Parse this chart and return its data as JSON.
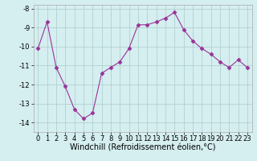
{
  "x": [
    0,
    1,
    2,
    3,
    4,
    5,
    6,
    7,
    8,
    9,
    10,
    11,
    12,
    13,
    14,
    15,
    16,
    17,
    18,
    19,
    20,
    21,
    22,
    23
  ],
  "y": [
    -10.1,
    -8.7,
    -11.1,
    -12.1,
    -13.3,
    -13.8,
    -13.5,
    -11.4,
    -11.1,
    -10.8,
    -10.1,
    -8.85,
    -8.85,
    -8.7,
    -8.5,
    -8.2,
    -9.1,
    -9.7,
    -10.1,
    -10.4,
    -10.8,
    -11.1,
    -10.7,
    -11.1
  ],
  "line_color": "#993399",
  "marker": "D",
  "marker_size": 2.5,
  "bg_color": "#d5eef0",
  "grid_color": "#aacccc",
  "xlabel": "Windchill (Refroidissement éolien,°C)",
  "xlim": [
    -0.5,
    23.5
  ],
  "ylim": [
    -14.5,
    -7.8
  ],
  "yticks": [
    -8,
    -9,
    -10,
    -11,
    -12,
    -13,
    -14
  ],
  "xticks": [
    0,
    1,
    2,
    3,
    4,
    5,
    6,
    7,
    8,
    9,
    10,
    11,
    12,
    13,
    14,
    15,
    16,
    17,
    18,
    19,
    20,
    21,
    22,
    23
  ],
  "tick_fontsize": 6,
  "xlabel_fontsize": 7
}
